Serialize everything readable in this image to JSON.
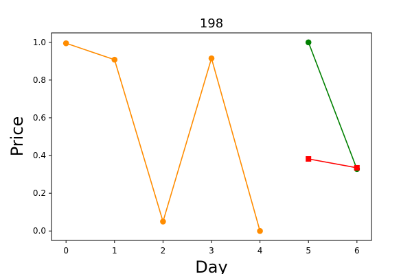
{
  "chart_data": {
    "type": "line",
    "title": "198",
    "xlabel": "Day",
    "ylabel": "Price",
    "xlim": [
      -0.3,
      6.3
    ],
    "ylim": [
      -0.05,
      1.05
    ],
    "xticks": [
      0,
      1,
      2,
      3,
      4,
      5,
      6
    ],
    "xtick_labels": [
      "0",
      "1",
      "2",
      "3",
      "4",
      "5",
      "6"
    ],
    "yticks": [
      0.0,
      0.2,
      0.4,
      0.6,
      0.8,
      1.0
    ],
    "ytick_labels": [
      "0.0",
      "0.2",
      "0.4",
      "0.6",
      "0.8",
      "1.0"
    ],
    "grid": false,
    "series": [
      {
        "color": "#ff8c00",
        "marker": "circle",
        "x": [
          0,
          1,
          2,
          3,
          4
        ],
        "y": [
          0.995,
          0.908,
          0.05,
          0.915,
          0.0
        ]
      },
      {
        "color": "#008000",
        "marker": "circle",
        "x": [
          5,
          6
        ],
        "y": [
          1.0,
          0.328
        ]
      },
      {
        "color": "#ff0000",
        "marker": "square",
        "x": [
          5,
          6
        ],
        "y": [
          0.382,
          0.335
        ]
      }
    ]
  }
}
